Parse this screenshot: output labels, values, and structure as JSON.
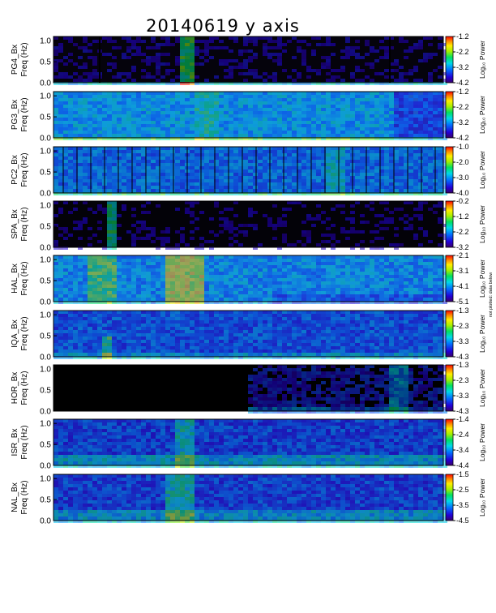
{
  "title": "20140619 y axis",
  "chart_data": [
    {
      "type": "heatmap",
      "station": "PG4",
      "ylabel_1": "PG4_Bx",
      "ylabel_2": "Freq (Hz)",
      "yticks": [
        "0.0",
        "0.5",
        "1.0"
      ],
      "ylim": [
        0,
        1.1
      ],
      "colorbar": {
        "label": "Log₁₀ Power",
        "ticks": [
          "-1.2",
          "-2.2",
          "-3.2",
          "-4.2"
        ],
        "min": -4.2,
        "max": -1.2
      },
      "background": "#05030c",
      "dark_gaps": [
        12,
        48
      ]
    },
    {
      "type": "heatmap",
      "station": "PG3",
      "ylabel_1": "PG3_Bx",
      "ylabel_2": "Freq (Hz)",
      "yticks": [
        "0.0",
        "0.5",
        "1.0"
      ],
      "ylim": [
        0,
        1.1
      ],
      "colorbar": {
        "label": "Log₁₀ Power",
        "ticks": [
          "-1.2",
          "-2.2",
          "-3.2",
          "-4.2"
        ],
        "min": -4.2,
        "max": -1.2
      },
      "background": "#1e56c8"
    },
    {
      "type": "heatmap",
      "station": "PC2",
      "ylabel_1": "PC2_Bx",
      "ylabel_2": "Freq (Hz)",
      "yticks": [
        "0.0",
        "0.5",
        "1.0"
      ],
      "ylim": [
        0,
        1.1
      ],
      "colorbar": {
        "label": "Log₁₀ Power",
        "ticks": [
          "-1.0",
          "-2.0",
          "-3.0",
          "-4.0"
        ],
        "min": -4.0,
        "max": -1.0
      },
      "background": "#1a3aa8"
    },
    {
      "type": "heatmap",
      "station": "SPA",
      "ylabel_1": "SPA_Bx",
      "ylabel_2": "Freq (Hz)",
      "yticks": [
        "0.0",
        "0.5",
        "1.0"
      ],
      "ylim": [
        0,
        1.1
      ],
      "colorbar": {
        "label": "Log₁₀ Power",
        "ticks": [
          "-0.2",
          "-1.2",
          "-2.2",
          "-3.2"
        ],
        "min": -3.2,
        "max": -0.2
      },
      "background": "#030208"
    },
    {
      "type": "heatmap",
      "station": "HAL",
      "ylabel_1": "HAL_Bx",
      "ylabel_2": "Freq (Hz)",
      "yticks": [
        "0.0",
        "0.5",
        "1.0"
      ],
      "ylim": [
        0,
        1.1
      ],
      "colorbar": {
        "label": "Log₁₀ Power",
        "ticks": [
          "-2.1",
          "-3.1",
          "-4.1",
          "-5.1"
        ],
        "min": -5.1,
        "max": -2.1
      },
      "background": "#2452c0",
      "note": "not plotted: data below"
    },
    {
      "type": "heatmap",
      "station": "IQA",
      "ylabel_1": "IQA_Bx",
      "ylabel_2": "Freq (Hz)",
      "yticks": [
        "0.0",
        "0.5",
        "1.0"
      ],
      "ylim": [
        0,
        1.1
      ],
      "colorbar": {
        "label": "Log₁₀ Power",
        "ticks": [
          "-1.3",
          "-2.3",
          "-3.3",
          "-4.3"
        ],
        "min": -4.3,
        "max": -1.3
      },
      "background": "#1c36a0"
    },
    {
      "type": "heatmap",
      "station": "HOR",
      "ylabel_1": "HOR_Bx",
      "ylabel_2": "Freq (Hz)",
      "yticks": [
        "0.0",
        "0.5",
        "1.0"
      ],
      "ylim": [
        0,
        1.1
      ],
      "colorbar": {
        "label": "Log₁₀ Power",
        "ticks": [
          "-1.3",
          "-2.3",
          "-3.3",
          "-4.3"
        ],
        "min": -4.3,
        "max": -1.3
      },
      "background": "#000000",
      "data_start": 0.49
    },
    {
      "type": "heatmap",
      "station": "ISR",
      "ylabel_1": "ISR_Bx",
      "ylabel_2": "Freq (Hz)",
      "yticks": [
        "0.0",
        "0.5",
        "1.0"
      ],
      "ylim": [
        0,
        1.1
      ],
      "colorbar": {
        "label": "Log₁₀ Power",
        "ticks": [
          "-1.4",
          "-2.4",
          "-3.4",
          "-4.4"
        ],
        "min": -4.4,
        "max": -1.4
      },
      "background": "#1a2c8c"
    },
    {
      "type": "heatmap",
      "station": "NAL",
      "ylabel_1": "NAL_Bx",
      "ylabel_2": "Freq (Hz)",
      "yticks": [
        "0.0",
        "0.5",
        "1.0"
      ],
      "ylim": [
        0,
        1.1
      ],
      "colorbar": {
        "label": "Log₁₀ Power",
        "ticks": [
          "-1.5",
          "-2.5",
          "-3.5",
          "-4.5"
        ],
        "min": -4.5,
        "max": -1.5
      },
      "background": "#1e2e90"
    }
  ]
}
